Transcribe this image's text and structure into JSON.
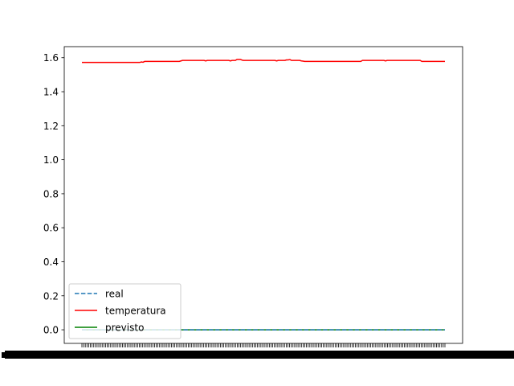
{
  "chart_data": {
    "type": "line",
    "title": "",
    "xlabel": "",
    "ylabel": "",
    "ylim": [
      -0.08,
      1.665
    ],
    "yticks": [
      "0.0",
      "0.2",
      "0.4",
      "0.6",
      "0.8",
      "1.0",
      "1.2",
      "1.4",
      "1.6"
    ],
    "x_tick_count": 216,
    "xtick_labels_note": "x tick labels are overlapping and illegible",
    "grid": false,
    "legend": {
      "position": "lower left",
      "entries": [
        {
          "label": "real",
          "color": "#1f77b4",
          "style": "dashed"
        },
        {
          "label": "temperatura",
          "color": "#ff0000",
          "style": "solid"
        },
        {
          "label": "previsto",
          "color": "#008000",
          "style": "solid"
        }
      ]
    },
    "series": [
      {
        "name": "temperatura",
        "color": "#ff0000",
        "values": [
          1.572,
          1.572,
          1.572,
          1.572,
          1.572,
          1.572,
          1.572,
          1.572,
          1.572,
          1.572,
          1.572,
          1.572,
          1.572,
          1.572,
          1.572,
          1.572,
          1.572,
          1.572,
          1.572,
          1.572,
          1.572,
          1.572,
          1.572,
          1.572,
          1.572,
          1.572,
          1.572,
          1.572,
          1.572,
          1.572,
          1.572,
          1.572,
          1.572,
          1.572,
          1.572,
          1.572,
          1.575,
          1.573,
          1.578,
          1.578,
          1.578,
          1.578,
          1.578,
          1.578,
          1.578,
          1.578,
          1.578,
          1.578,
          1.578,
          1.578,
          1.578,
          1.578,
          1.578,
          1.578,
          1.578,
          1.578,
          1.578,
          1.578,
          1.578,
          1.578,
          1.581,
          1.584,
          1.584,
          1.584,
          1.584,
          1.584,
          1.584,
          1.584,
          1.584,
          1.584,
          1.584,
          1.584,
          1.584,
          1.584,
          1.584,
          1.581,
          1.584,
          1.584,
          1.584,
          1.584,
          1.584,
          1.584,
          1.584,
          1.584,
          1.584,
          1.584,
          1.584,
          1.584,
          1.584,
          1.584,
          1.581,
          1.584,
          1.584,
          1.584,
          1.59,
          1.59,
          1.59,
          1.586,
          1.584,
          1.584,
          1.584,
          1.584,
          1.584,
          1.584,
          1.584,
          1.584,
          1.584,
          1.584,
          1.584,
          1.584,
          1.584,
          1.584,
          1.584,
          1.584,
          1.584,
          1.584,
          1.584,
          1.584,
          1.581,
          1.584,
          1.584,
          1.584,
          1.584,
          1.584,
          1.587,
          1.587,
          1.589,
          1.584,
          1.584,
          1.584,
          1.584,
          1.584,
          1.584,
          1.581,
          1.58,
          1.578,
          1.578,
          1.578,
          1.578,
          1.578,
          1.578,
          1.578,
          1.578,
          1.578,
          1.578,
          1.578,
          1.578,
          1.578,
          1.578,
          1.578,
          1.578,
          1.578,
          1.578,
          1.578,
          1.578,
          1.578,
          1.578,
          1.578,
          1.578,
          1.578,
          1.578,
          1.578,
          1.578,
          1.578,
          1.578,
          1.578,
          1.578,
          1.578,
          1.578,
          1.578,
          1.584,
          1.584,
          1.584,
          1.584,
          1.584,
          1.584,
          1.584,
          1.584,
          1.584,
          1.584,
          1.584,
          1.584,
          1.584,
          1.584,
          1.581,
          1.584,
          1.584,
          1.584,
          1.584,
          1.584,
          1.584,
          1.584,
          1.584,
          1.584,
          1.584,
          1.584,
          1.584,
          1.584,
          1.584,
          1.584,
          1.584,
          1.584,
          1.584,
          1.584,
          1.584,
          1.584,
          1.578,
          1.578,
          1.578,
          1.578,
          1.578,
          1.578,
          1.578,
          1.578,
          1.578,
          1.578,
          1.578,
          1.578,
          1.578,
          1.578,
          1.578
        ]
      },
      {
        "name": "previsto",
        "color": "#008000",
        "constant_value": 0.0
      },
      {
        "name": "real",
        "color": "#1f77b4",
        "constant_value": 0.0
      }
    ]
  }
}
